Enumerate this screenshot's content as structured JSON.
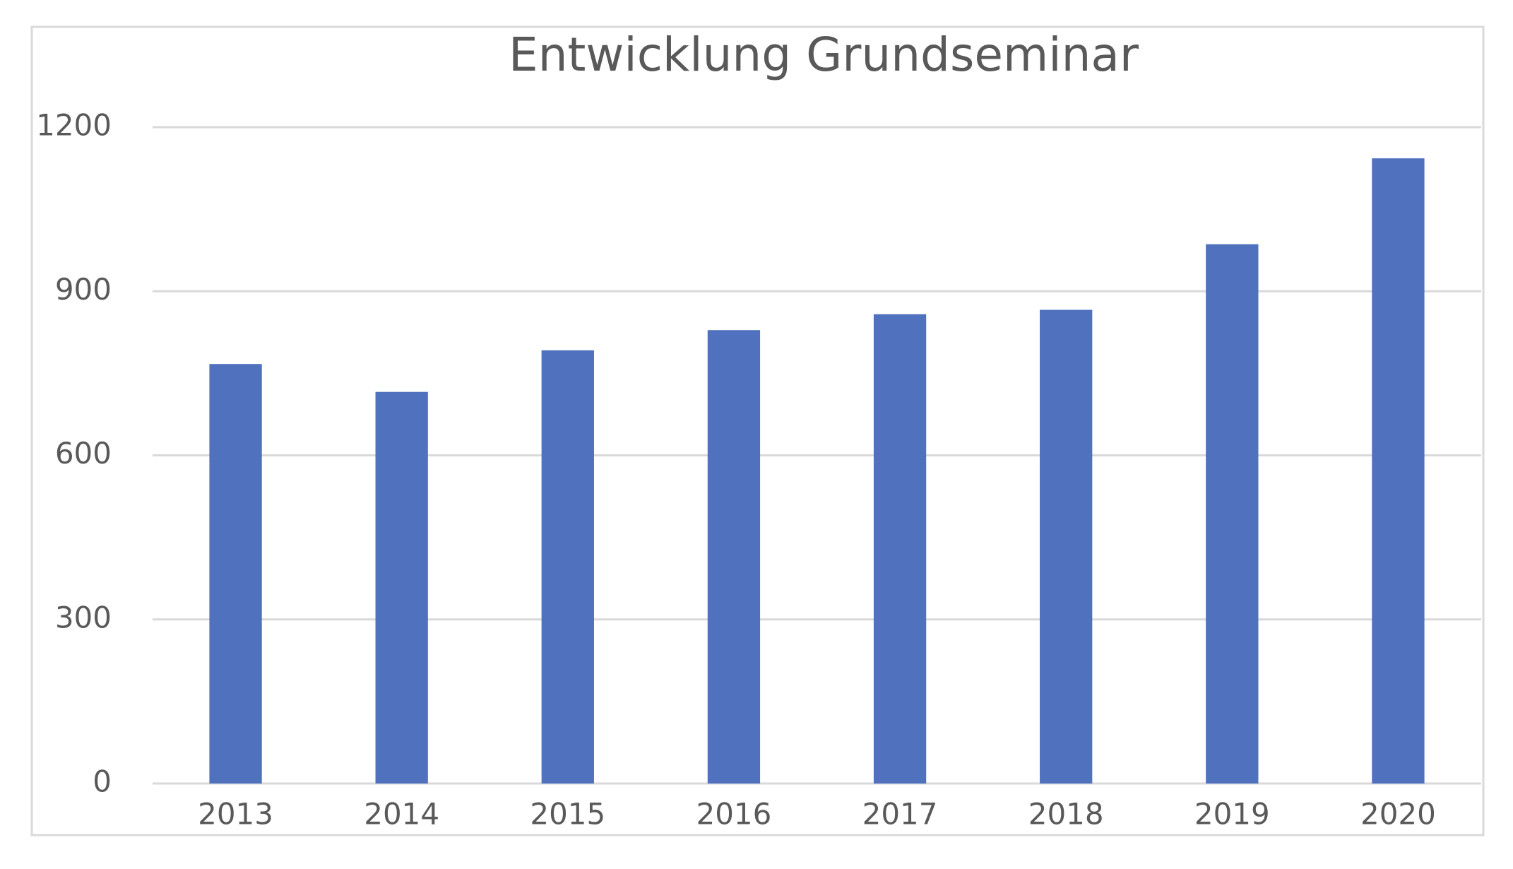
{
  "chart_data": {
    "type": "bar",
    "title": "Entwicklung Grundseminar",
    "categories": [
      "2013",
      "2014",
      "2015",
      "2016",
      "2017",
      "2018",
      "2019",
      "2020"
    ],
    "values": [
      767,
      716,
      792,
      829,
      858,
      866,
      986,
      1143
    ],
    "color": "#4f71be",
    "ylim": [
      0,
      1200
    ],
    "yticks": [
      0,
      300,
      600,
      900,
      1200
    ],
    "grid": true
  }
}
